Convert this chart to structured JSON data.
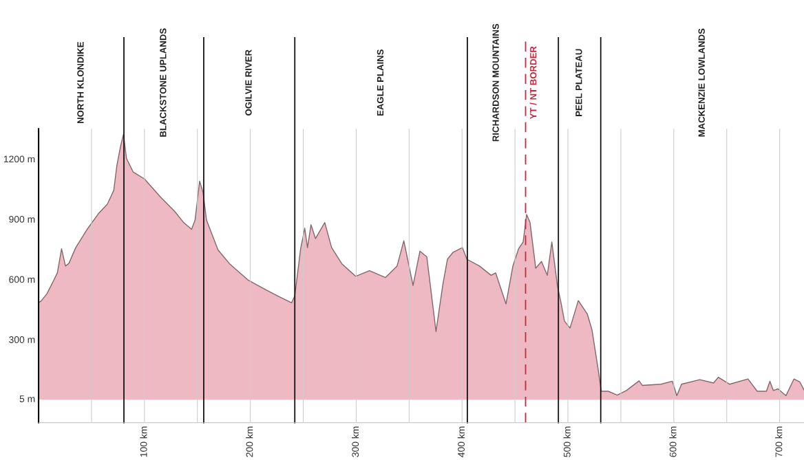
{
  "chart_data": {
    "type": "area",
    "x": [
      0,
      2.6,
      8,
      14.5,
      17.7,
      21.7,
      25.4,
      28.6,
      35,
      46,
      56.8,
      65,
      71,
      74,
      77.4,
      80.2,
      83,
      89.3,
      100,
      115.3,
      128.3,
      137,
      144.5,
      147.8,
      152.1,
      155.4,
      158.6,
      169.5,
      180.3,
      197.7,
      212.8,
      225.8,
      239,
      242,
      247.5,
      251.4,
      254,
      257.3,
      261.6,
      270.3,
      276.8,
      286.5,
      299.5,
      312.5,
      327.7,
      338.6,
      345,
      353.7,
      360.2,
      366.7,
      375.4,
      381.9,
      386.2,
      391.6,
      400.3,
      404.6,
      416.5,
      427.4,
      431.7,
      441.5,
      448,
      453.4,
      457.7,
      461,
      464.2,
      469.6,
      475,
      480.5,
      484.8,
      490.2,
      493.5,
      496.7,
      502,
      509.8,
      518.4,
      522.8,
      528.2,
      531.5,
      538,
      546.6,
      555.3,
      567.2,
      570.4,
      588,
      598.6,
      602.9,
      607.3,
      624.6,
      637.6,
      642,
      652.8,
      670.1,
      678.8,
      687.5,
      690.8,
      694,
      698.4,
      706,
      713.5,
      719,
      723
    ],
    "series": [
      {
        "color": "#eeb9c2",
        "values": [
          483,
          493,
          529,
          597,
          632,
          752,
          666,
          679,
          757,
          850,
          929,
          975,
          1043,
          1169,
          1262,
          1323,
          1203,
          1135,
          1100,
          1009,
          940,
          883,
          849,
          895,
          1089,
          1032,
          895,
          746,
          678,
          597,
          553,
          517,
          483,
          517,
          752,
          855,
          758,
          872,
          803,
          883,
          758,
          677,
          615,
          643,
          609,
          666,
          792,
          569,
          740,
          712,
          340,
          575,
          700,
          735,
          758,
          700,
          666,
          620,
          632,
          477,
          666,
          752,
          786,
          923,
          883,
          655,
          689,
          620,
          786,
          563,
          483,
          392,
          357,
          494,
          426,
          346,
          163,
          42,
          42,
          23,
          46,
          94,
          71,
          77,
          92,
          20,
          77,
          100,
          83,
          112,
          77,
          103,
          42,
          42,
          92,
          46,
          54,
          20,
          103,
          89,
          49
        ]
      }
    ],
    "xlim": [
      0,
      723
    ],
    "ylim": [
      -115,
      1350
    ],
    "xticks": [
      {
        "value": 50,
        "label": null
      },
      {
        "value": 100,
        "label": "100 km"
      },
      {
        "value": 150,
        "label": null
      },
      {
        "value": 200,
        "label": "200 km"
      },
      {
        "value": 250,
        "label": null
      },
      {
        "value": 300,
        "label": "300 km"
      },
      {
        "value": 350,
        "label": null
      },
      {
        "value": 400,
        "label": "400 km"
      },
      {
        "value": 450,
        "label": null
      },
      {
        "value": 500,
        "label": "500 km"
      },
      {
        "value": 550,
        "label": null
      },
      {
        "value": 600,
        "label": "600 km"
      },
      {
        "value": 650,
        "label": null
      },
      {
        "value": 700,
        "label": "700 km"
      }
    ],
    "yticks": [
      {
        "value": 5,
        "label": "5 m"
      },
      {
        "value": 300,
        "label": "300 m"
      },
      {
        "value": 600,
        "label": "600 m"
      },
      {
        "value": 900,
        "label": "900 m"
      },
      {
        "value": 1200,
        "label": "1200 m"
      }
    ],
    "grid": "x",
    "ref_lines": [
      {
        "axis": "x",
        "value": 80.6,
        "color": "#111111"
      },
      {
        "axis": "x",
        "value": 156,
        "color": "#111111"
      },
      {
        "axis": "x",
        "value": 242,
        "color": "#111111"
      },
      {
        "axis": "x",
        "value": 405,
        "color": "#111111"
      },
      {
        "axis": "x",
        "value": 460,
        "label": "YT / NT BORDER",
        "color": "#c8283c",
        "line_style": "dashed"
      },
      {
        "axis": "x",
        "value": 491,
        "color": "#111111"
      },
      {
        "axis": "x",
        "value": 531,
        "color": "#111111"
      }
    ],
    "annotations": [
      "NORTH KLONDIKE",
      "BLACKSTONE UPLANDS",
      "OGILVIE RIVER",
      "EAGLE PLAINS",
      "RICHARDSON MOUNTAINS",
      "PEEL PLATEAU",
      "MACKENZIE LOWLANDS"
    ]
  }
}
